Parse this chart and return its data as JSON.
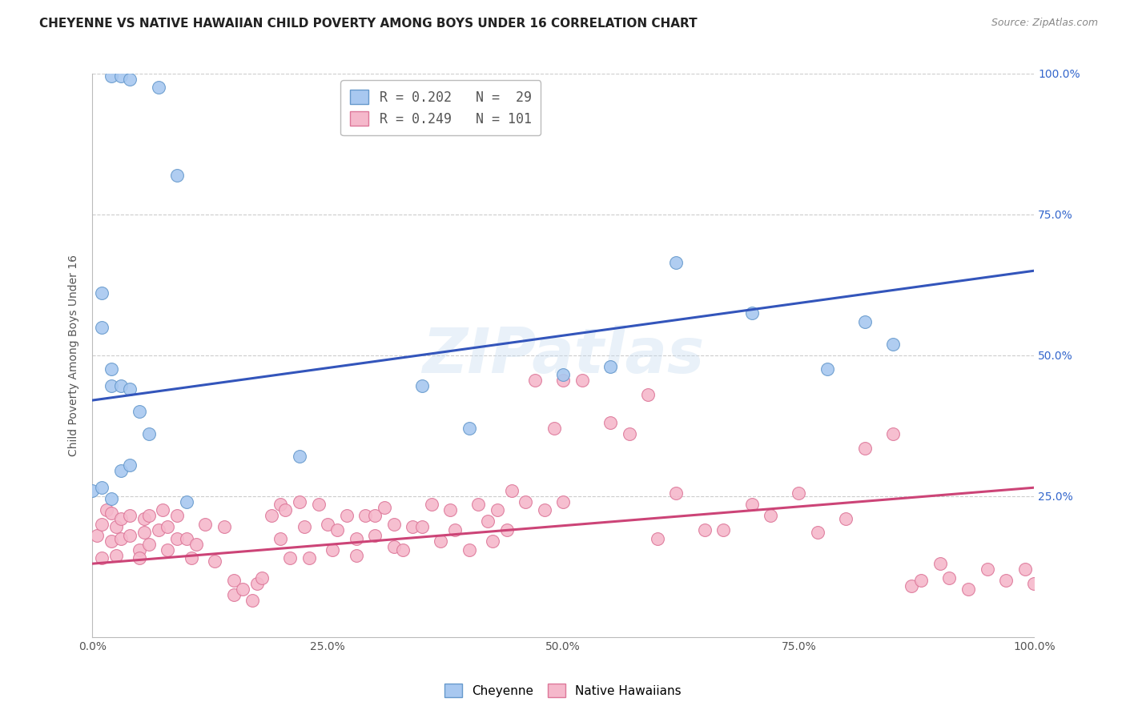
{
  "title": "CHEYENNE VS NATIVE HAWAIIAN CHILD POVERTY AMONG BOYS UNDER 16 CORRELATION CHART",
  "source": "Source: ZipAtlas.com",
  "ylabel": "Child Poverty Among Boys Under 16",
  "xlim": [
    0,
    1.0
  ],
  "ylim": [
    0,
    1.0
  ],
  "xtick_labels": [
    "0.0%",
    "25.0%",
    "50.0%",
    "75.0%",
    "100.0%"
  ],
  "xtick_positions": [
    0.0,
    0.25,
    0.5,
    0.75,
    1.0
  ],
  "ytick_labels_right": [
    "100.0%",
    "75.0%",
    "50.0%",
    "25.0%"
  ],
  "ytick_positions_right": [
    1.0,
    0.75,
    0.5,
    0.25
  ],
  "legend1_label": "R = 0.202   N =  29",
  "legend2_label": "R = 0.249   N = 101",
  "cheyenne_color": "#a8c8f0",
  "cheyenne_edge_color": "#6699cc",
  "native_hawaiian_color": "#f5b8cb",
  "native_hawaiian_edge_color": "#dd7799",
  "cheyenne_line_color": "#3355bb",
  "native_hawaiian_line_color": "#cc4477",
  "watermark": "ZIPatlas",
  "background_color": "#ffffff",
  "grid_color": "#cccccc",
  "cheyenne_line_x0": 0.0,
  "cheyenne_line_y0": 0.42,
  "cheyenne_line_x1": 1.0,
  "cheyenne_line_y1": 0.65,
  "native_line_x0": 0.0,
  "native_line_y0": 0.13,
  "native_line_x1": 1.0,
  "native_line_y1": 0.265,
  "cheyenne_x": [
    0.02,
    0.03,
    0.04,
    0.07,
    0.01,
    0.01,
    0.02,
    0.02,
    0.03,
    0.04,
    0.05,
    0.06,
    0.09,
    0.35,
    0.4,
    0.5,
    0.62,
    0.7,
    0.78,
    0.82,
    0.85,
    0.0,
    0.01,
    0.02,
    0.03,
    0.04,
    0.1,
    0.22,
    0.55
  ],
  "cheyenne_y": [
    0.995,
    0.995,
    0.99,
    0.975,
    0.61,
    0.55,
    0.475,
    0.445,
    0.445,
    0.44,
    0.4,
    0.36,
    0.82,
    0.445,
    0.37,
    0.465,
    0.665,
    0.575,
    0.475,
    0.56,
    0.52,
    0.26,
    0.265,
    0.245,
    0.295,
    0.305,
    0.24,
    0.32,
    0.48
  ],
  "native_hawaiian_x": [
    0.005,
    0.01,
    0.01,
    0.015,
    0.02,
    0.02,
    0.025,
    0.025,
    0.03,
    0.03,
    0.04,
    0.04,
    0.05,
    0.05,
    0.055,
    0.055,
    0.06,
    0.06,
    0.07,
    0.075,
    0.08,
    0.08,
    0.09,
    0.09,
    0.1,
    0.105,
    0.11,
    0.12,
    0.13,
    0.14,
    0.15,
    0.15,
    0.16,
    0.17,
    0.175,
    0.18,
    0.19,
    0.2,
    0.2,
    0.205,
    0.21,
    0.22,
    0.225,
    0.23,
    0.24,
    0.25,
    0.255,
    0.26,
    0.27,
    0.28,
    0.28,
    0.29,
    0.3,
    0.3,
    0.31,
    0.32,
    0.32,
    0.33,
    0.34,
    0.35,
    0.36,
    0.37,
    0.38,
    0.385,
    0.4,
    0.41,
    0.42,
    0.425,
    0.43,
    0.44,
    0.445,
    0.46,
    0.47,
    0.48,
    0.49,
    0.5,
    0.5,
    0.52,
    0.55,
    0.57,
    0.59,
    0.6,
    0.62,
    0.65,
    0.67,
    0.7,
    0.72,
    0.75,
    0.77,
    0.8,
    0.82,
    0.85,
    0.87,
    0.88,
    0.9,
    0.91,
    0.93,
    0.95,
    0.97,
    0.99,
    1.0
  ],
  "native_hawaiian_y": [
    0.18,
    0.2,
    0.14,
    0.225,
    0.22,
    0.17,
    0.195,
    0.145,
    0.21,
    0.175,
    0.215,
    0.18,
    0.155,
    0.14,
    0.185,
    0.21,
    0.215,
    0.165,
    0.19,
    0.225,
    0.155,
    0.195,
    0.175,
    0.215,
    0.175,
    0.14,
    0.165,
    0.2,
    0.135,
    0.195,
    0.075,
    0.1,
    0.085,
    0.065,
    0.095,
    0.105,
    0.215,
    0.235,
    0.175,
    0.225,
    0.14,
    0.24,
    0.195,
    0.14,
    0.235,
    0.2,
    0.155,
    0.19,
    0.215,
    0.145,
    0.175,
    0.215,
    0.215,
    0.18,
    0.23,
    0.16,
    0.2,
    0.155,
    0.195,
    0.195,
    0.235,
    0.17,
    0.225,
    0.19,
    0.155,
    0.235,
    0.205,
    0.17,
    0.225,
    0.19,
    0.26,
    0.24,
    0.455,
    0.225,
    0.37,
    0.455,
    0.24,
    0.455,
    0.38,
    0.36,
    0.43,
    0.175,
    0.255,
    0.19,
    0.19,
    0.235,
    0.215,
    0.255,
    0.185,
    0.21,
    0.335,
    0.36,
    0.09,
    0.1,
    0.13,
    0.105,
    0.085,
    0.12,
    0.1,
    0.12,
    0.095
  ]
}
